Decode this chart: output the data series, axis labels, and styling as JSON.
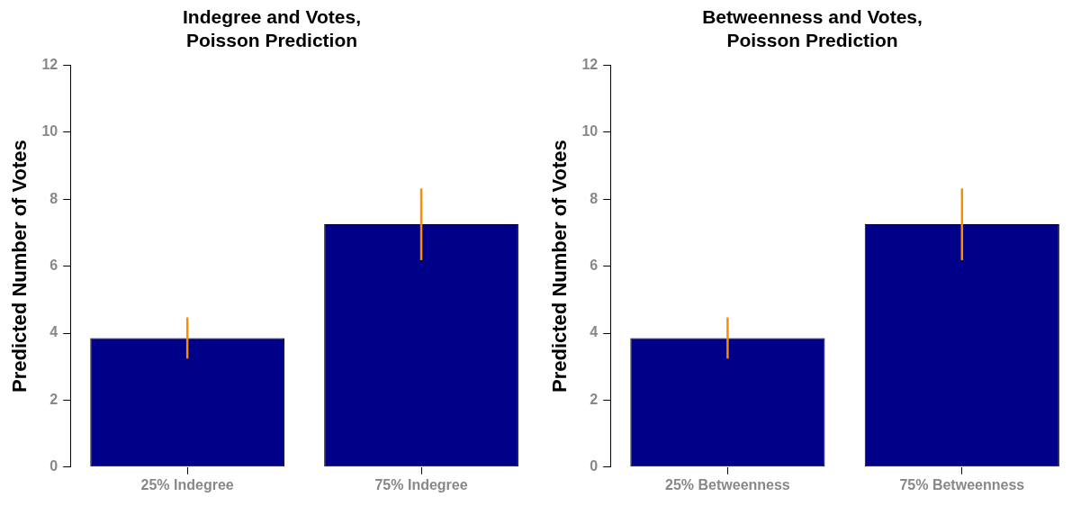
{
  "chart_data": [
    {
      "type": "bar",
      "title": "Indegree and Votes,\nPoisson Prediction",
      "ylabel": "Predicted Number of Votes",
      "categories": [
        "25% Indegree",
        "75% Indegree"
      ],
      "values": [
        3.85,
        7.25
      ],
      "color": "#000088",
      "errors": [
        [
          3.24,
          4.47
        ],
        [
          6.18,
          8.32
        ]
      ],
      "ylim": [
        0,
        12
      ],
      "yticks": [
        0,
        2,
        4,
        6,
        8,
        10,
        12
      ],
      "grid": false,
      "legend": false
    },
    {
      "type": "bar",
      "title": "Betweenness and Votes,\nPoisson Prediction",
      "ylabel": "Predicted Number of Votes",
      "categories": [
        "25% Betweenness",
        "75% Betweenness"
      ],
      "values": [
        3.85,
        7.25
      ],
      "color": "#000088",
      "errors": [
        [
          3.24,
          4.47
        ],
        [
          6.18,
          8.32
        ]
      ],
      "ylim": [
        0,
        12
      ],
      "yticks": [
        0,
        2,
        4,
        6,
        8,
        10,
        12
      ],
      "grid": false,
      "legend": false
    }
  ]
}
